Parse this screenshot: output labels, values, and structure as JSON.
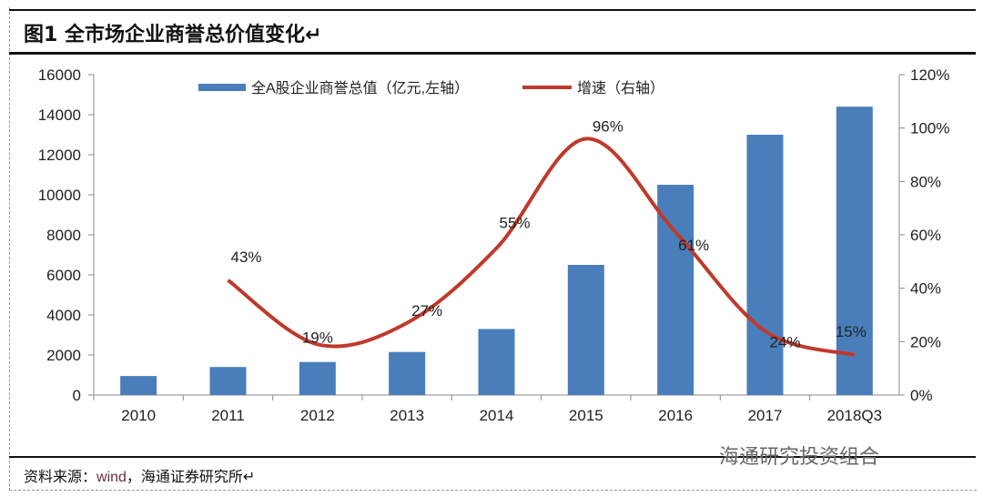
{
  "header": {
    "title": "图1  全市场企业商誉总价值变化↵"
  },
  "footer": {
    "source_prefix": "资料来源：",
    "source_wind": "wind",
    "source_suffix": "，海通证券研究所↵",
    "watermark": "海通研究投资组合"
  },
  "chart_data": {
    "type": "bar",
    "title": "全市场企业商誉总价值变化",
    "categories": [
      "2010",
      "2011",
      "2012",
      "2013",
      "2014",
      "2015",
      "2016",
      "2017",
      "2018Q3"
    ],
    "series": [
      {
        "name": "全A股企业商誉总值（亿元,左轴）",
        "type": "bar",
        "axis": "left",
        "color": "#4a7ebb",
        "values": [
          950,
          1400,
          1650,
          2150,
          3300,
          6500,
          10500,
          13000,
          14400
        ]
      },
      {
        "name": "增速（右轴）",
        "type": "line",
        "axis": "right",
        "color": "#c0392b",
        "values": [
          null,
          0.43,
          0.19,
          0.27,
          0.55,
          0.96,
          0.61,
          0.24,
          0.15
        ],
        "labels": [
          null,
          "43%",
          "19%",
          "27%",
          "55%",
          "96%",
          "61%",
          "24%",
          "15%"
        ]
      }
    ],
    "ylim": [
      0,
      16000
    ],
    "yticks": [
      "0",
      "2000",
      "4000",
      "6000",
      "8000",
      "10000",
      "12000",
      "14000",
      "16000"
    ],
    "y2lim": [
      0,
      1.2
    ],
    "y2ticks": [
      "0%",
      "20%",
      "40%",
      "60%",
      "80%",
      "100%",
      "120%"
    ],
    "legend": "top-center",
    "grid": false
  }
}
